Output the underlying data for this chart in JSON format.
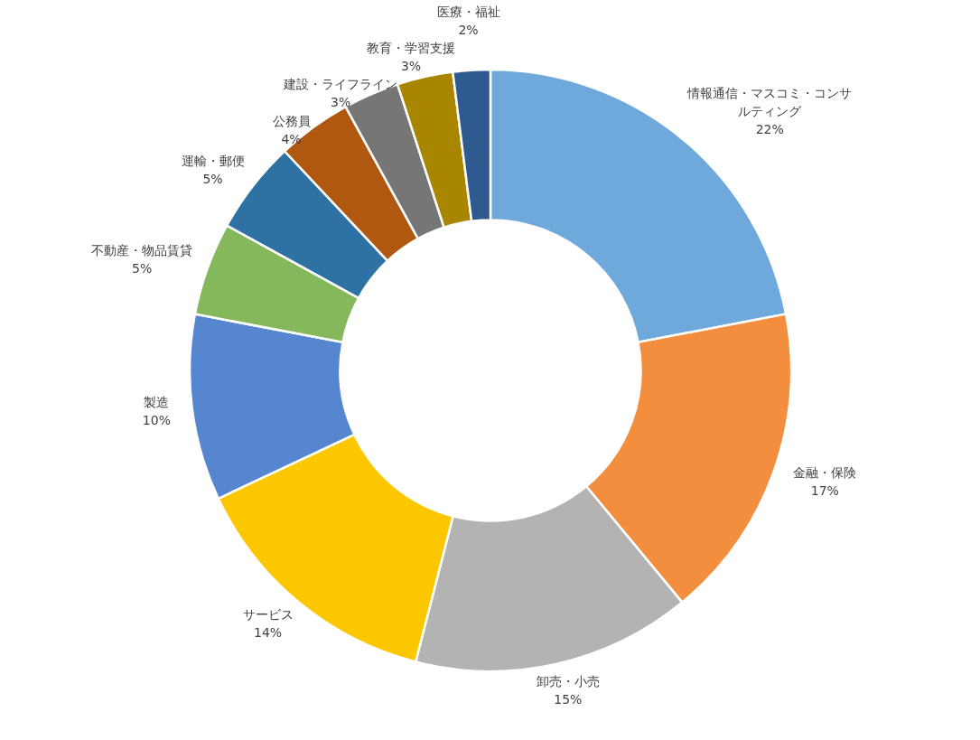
{
  "chart_data": {
    "type": "donut",
    "categories": [
      "情報通信・マスコミ・コンサルティング",
      "金融・保険",
      "卸売・小売",
      "サービス",
      "製造",
      "不動産・物品賃貸",
      "運輸・郵便",
      "公務員",
      "建設・ライフライン",
      "教育・学習支援",
      "医療・福祉"
    ],
    "values": [
      22,
      17,
      15,
      14,
      10,
      5,
      5,
      4,
      3,
      3,
      2
    ],
    "colors": [
      "#6fa9dc",
      "#f28e3e",
      "#b3b3b3",
      "#fdc700",
      "#5586cf",
      "#84b85a",
      "#2e72a3",
      "#b0580f",
      "#767676",
      "#a88600",
      "#2f5a8f"
    ],
    "value_labels": [
      "22%",
      "17%",
      "15%",
      "14%",
      "10%",
      "5%",
      "5%",
      "4%",
      "3%",
      "3%",
      "2%"
    ]
  }
}
